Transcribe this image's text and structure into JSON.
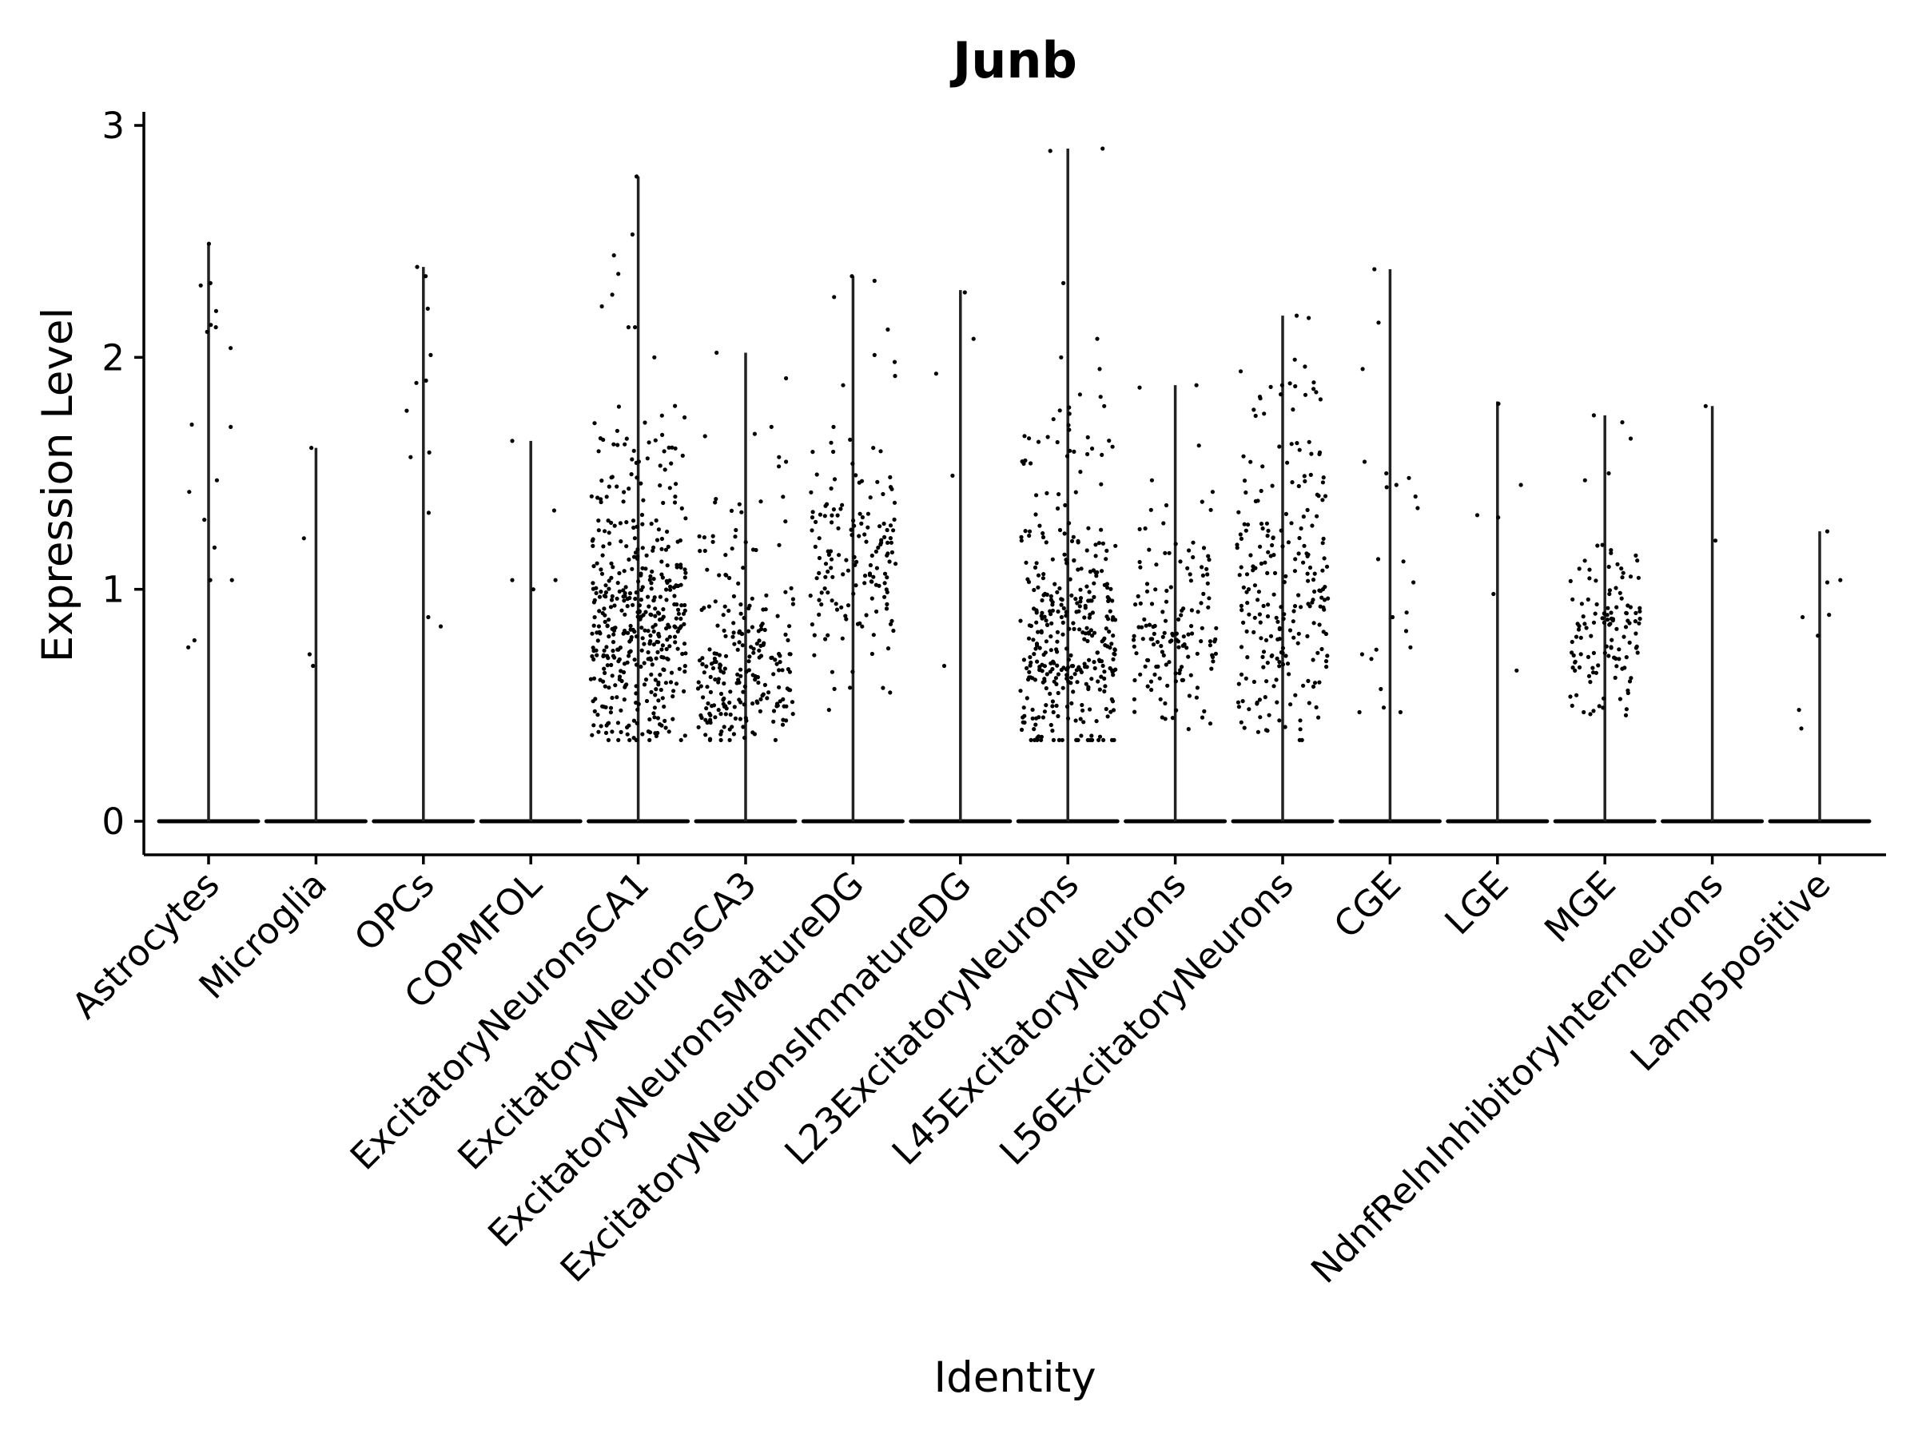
{
  "chart_data": {
    "type": "violin",
    "title": "Junb",
    "xlabel": "Identity",
    "ylabel": "Expression Level",
    "ylim": [
      -0.15,
      3.05
    ],
    "yticks": [
      0,
      1,
      2,
      3
    ],
    "ytick_labels": [
      "0",
      "1",
      "2",
      "3"
    ],
    "grid": false,
    "legend": "none",
    "point_color": "#000000",
    "violin_color": "#222222",
    "categories": [
      {
        "name": "Astrocytes",
        "max": 2.49,
        "spread": 0.55,
        "points": [
          2.32,
          1.7,
          1.18,
          1.04,
          1.47,
          1.3,
          0.78,
          2.31,
          2.13,
          1.71,
          1.42,
          2.11,
          1.04,
          0.75,
          2.49,
          2.2,
          2.14,
          2.04
        ]
      },
      {
        "name": "Microglia",
        "max": 1.61,
        "spread": 0.3,
        "points": [
          0.72,
          0.67,
          1.61,
          1.22
        ]
      },
      {
        "name": "OPCs",
        "max": 2.39,
        "spread": 0.45,
        "points": [
          2.21,
          2.01,
          1.33,
          0.88,
          1.9,
          0.84,
          1.59,
          1.57,
          2.35,
          2.39,
          1.89,
          1.77
        ]
      },
      {
        "name": "COPMFOL",
        "max": 1.64,
        "spread": 0.5,
        "points": [
          1.64,
          1.04,
          1.0,
          1.34,
          1.04
        ]
      },
      {
        "name": "ExcitatoryNeuronsCA1",
        "max": 2.78,
        "spread": 0.96,
        "density": 440,
        "range": [
          0.35,
          1.8
        ],
        "peak": 0.8,
        "outliers": [
          2.78,
          2.53,
          2.44,
          2.36,
          2.27,
          2.22,
          2.13,
          2.13,
          2.0
        ]
      },
      {
        "name": "ExcitatoryNeuronsCA3",
        "max": 2.02,
        "spread": 0.96,
        "density": 230,
        "range": [
          0.35,
          1.4
        ],
        "peak": 0.63,
        "outliers": [
          2.02,
          1.91,
          1.7,
          1.67,
          1.66,
          1.57,
          1.55,
          1.53
        ]
      },
      {
        "name": "ExcitatoryNeuronsMatureDG",
        "max": 2.35,
        "spread": 0.86,
        "density": 150,
        "range": [
          0.55,
          1.7
        ],
        "peak": 1.2,
        "outliers": [
          2.35,
          2.33,
          2.26,
          2.12,
          2.01,
          1.98,
          1.92,
          1.88,
          0.48
        ]
      },
      {
        "name": "ExcitatoryNeuronsImmatureDG",
        "max": 2.29,
        "spread": 0.5,
        "points": [
          2.28,
          2.08,
          1.49,
          1.93,
          0.67
        ]
      },
      {
        "name": "L23ExcitatoryNeurons",
        "max": 2.9,
        "spread": 0.96,
        "density": 360,
        "range": [
          0.35,
          1.8
        ],
        "peak": 0.7,
        "outliers": [
          2.9,
          2.89,
          2.32,
          2.08,
          2.0,
          1.95,
          1.84,
          1.83
        ]
      },
      {
        "name": "L45ExcitatoryNeurons",
        "max": 1.88,
        "spread": 0.86,
        "density": 140,
        "range": [
          0.38,
          1.4
        ],
        "peak": 0.8,
        "outliers": [
          1.88,
          1.87,
          1.62,
          1.47,
          1.42
        ]
      },
      {
        "name": "L56ExcitatoryNeurons",
        "max": 2.18,
        "spread": 0.92,
        "density": 230,
        "range": [
          0.35,
          1.9
        ],
        "peak": 0.95,
        "outliers": [
          2.18,
          2.17,
          1.99,
          1.96,
          1.94,
          1.88
        ]
      },
      {
        "name": "CGE",
        "max": 2.38,
        "spread": 0.7,
        "points": [
          1.95,
          1.35,
          0.9,
          0.75,
          0.7,
          0.47,
          1.5,
          1.48,
          1.03,
          0.72,
          0.57,
          2.38,
          2.15,
          1.45,
          1.44,
          1.13,
          1.12,
          0.88,
          0.82,
          0.74,
          0.49,
          0.47,
          1.55,
          1.4
        ]
      },
      {
        "name": "LGE",
        "max": 1.81,
        "spread": 0.5,
        "points": [
          1.8,
          1.31,
          0.98,
          1.32,
          0.65,
          1.45
        ]
      },
      {
        "name": "MGE",
        "max": 1.75,
        "spread": 0.72,
        "density": 120,
        "range": [
          0.4,
          1.2
        ],
        "peak": 0.8,
        "outliers": [
          1.75,
          1.72,
          1.65,
          1.5,
          1.47
        ]
      },
      {
        "name": "NdnfRelnInhibitoryInterneurons",
        "max": 1.79,
        "spread": 0.55,
        "points": [
          1.79,
          1.21
        ]
      },
      {
        "name": "Lamp5positive",
        "max": 1.25,
        "spread": 0.5,
        "points": [
          1.04,
          0.88,
          0.8,
          0.4,
          0.48,
          0.89,
          1.03,
          1.25
        ]
      }
    ]
  }
}
